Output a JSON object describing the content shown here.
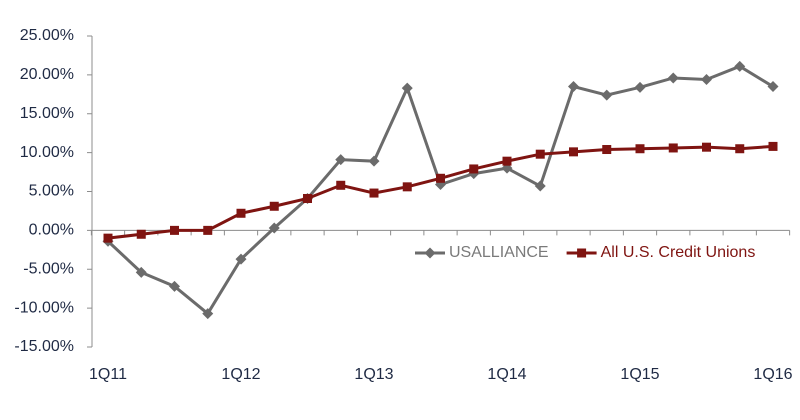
{
  "chart_data": {
    "type": "line",
    "categories": [
      "1Q11",
      null,
      null,
      null,
      "1Q12",
      null,
      null,
      null,
      "1Q13",
      null,
      null,
      null,
      "1Q14",
      null,
      null,
      null,
      "1Q15",
      null,
      null,
      null,
      "1Q16"
    ],
    "series": [
      {
        "name": "USALLIANCE",
        "color": "#6b6b6b",
        "marker": "diamond",
        "values": [
          -1.4,
          -5.4,
          -7.2,
          -10.7,
          -3.7,
          0.3,
          4.1,
          9.1,
          8.9,
          18.3,
          5.9,
          7.3,
          8.0,
          5.7,
          18.5,
          17.4,
          18.4,
          19.6,
          19.4,
          21.1,
          18.5
        ]
      },
      {
        "name": "All U.S. Credit Unions",
        "color": "#7f1411",
        "marker": "square",
        "values": [
          -1.0,
          -0.5,
          0.0,
          0.0,
          2.2,
          3.1,
          4.1,
          5.8,
          4.8,
          5.6,
          6.7,
          7.9,
          8.9,
          9.8,
          10.1,
          10.4,
          10.5,
          10.6,
          10.7,
          10.5,
          10.8
        ]
      }
    ],
    "ylim": [
      -15,
      25
    ],
    "yticks": [
      {
        "value": -15,
        "label": "-15.00%"
      },
      {
        "value": -10,
        "label": "-10.00%"
      },
      {
        "value": -5,
        "label": "-5.00%"
      },
      {
        "value": 0,
        "label": "0.00%"
      },
      {
        "value": 5,
        "label": "5.00%"
      },
      {
        "value": 10,
        "label": "10.00%"
      },
      {
        "value": 15,
        "label": "15.00%"
      },
      {
        "value": 20,
        "label": "20.00%"
      },
      {
        "value": 25,
        "label": "25.00%"
      }
    ],
    "grid": false,
    "legend": "right"
  }
}
